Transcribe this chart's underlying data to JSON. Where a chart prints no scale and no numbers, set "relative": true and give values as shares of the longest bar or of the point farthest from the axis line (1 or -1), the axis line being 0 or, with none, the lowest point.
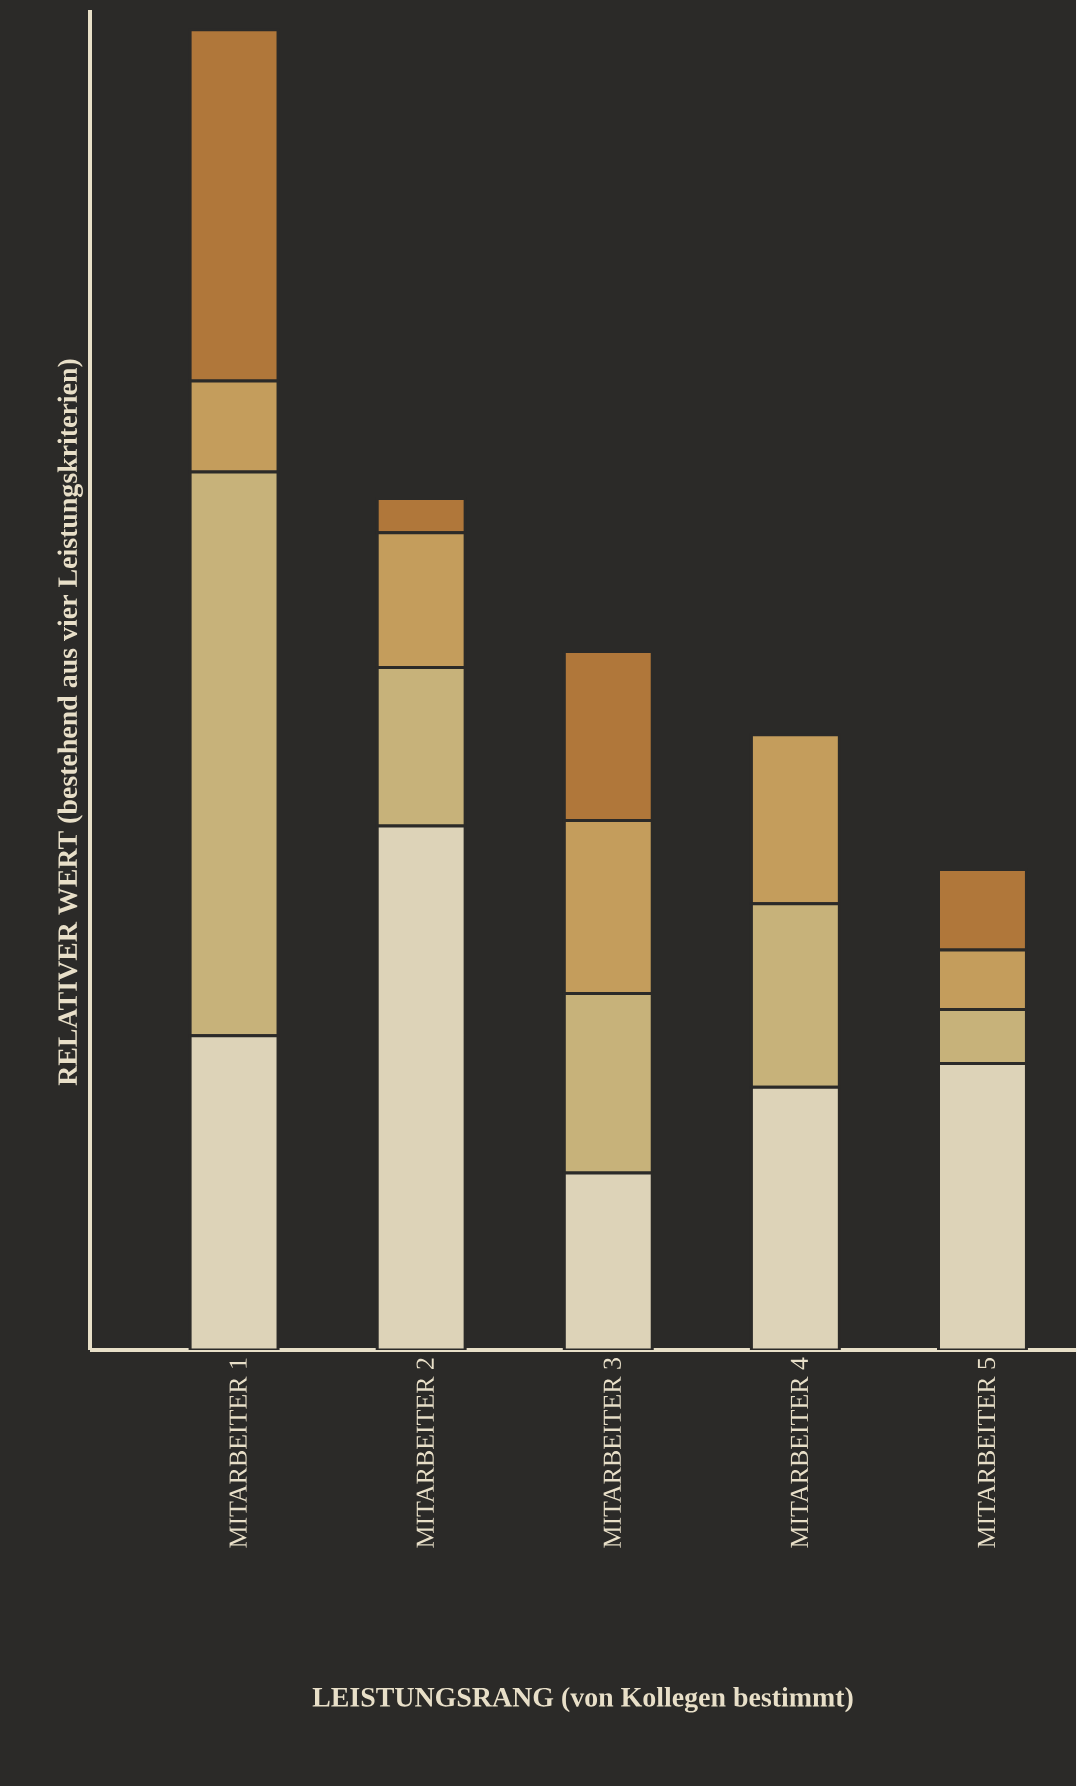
{
  "chart_data": {
    "type": "bar",
    "stacked": true,
    "relative": true,
    "xlabel": "LEISTUNGSRANG (von Kollegen bestimmt)",
    "ylabel": "RELATIVER WERT (bestehend aus vier Leistungskriterien)",
    "categories": [
      "MITARBEITER 1",
      "MITARBEITER 2",
      "MITARBEITER 3",
      "MITARBEITER 4",
      "MITARBEITER 5"
    ],
    "series": [
      {
        "color": "#ddd3b8",
        "values": [
          0.238,
          0.397,
          0.134,
          0.199,
          0.217
        ]
      },
      {
        "color": "#c7b27a",
        "values": [
          0.427,
          0.12,
          0.136,
          0.139,
          0.041
        ]
      },
      {
        "color": "#c49d5c",
        "values": [
          0.069,
          0.102,
          0.131,
          0.128,
          0.045
        ]
      },
      {
        "color": "#b0773a",
        "values": [
          0.266,
          0.026,
          0.128,
          0,
          0.061
        ]
      }
    ]
  }
}
